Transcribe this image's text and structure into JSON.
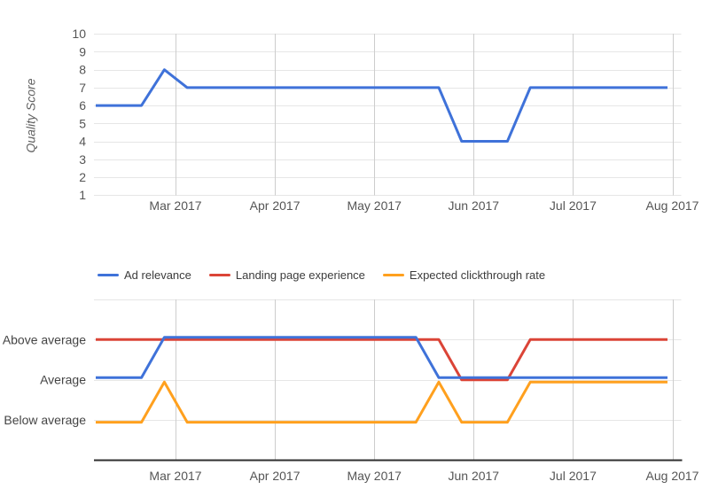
{
  "top_chart": {
    "y_axis_title": "Quality Score",
    "y_ticks": [
      "10",
      "9",
      "8",
      "7",
      "6",
      "5",
      "4",
      "3",
      "2",
      "1"
    ],
    "x_labels": [
      "Mar 2017",
      "Apr 2017",
      "May 2017",
      "Jun 2017",
      "Jul 2017",
      "Aug 2017"
    ]
  },
  "legend": {
    "items": [
      {
        "label": "Ad relevance",
        "color": "#3F72D9"
      },
      {
        "label": "Landing page experience",
        "color": "#DB4437"
      },
      {
        "label": "Expected clickthrough rate",
        "color": "#FFA01E"
      }
    ]
  },
  "bottom_chart": {
    "y_labels": [
      "Above average",
      "Average",
      "Below average"
    ],
    "x_labels": [
      "Mar 2017",
      "Apr 2017",
      "May 2017",
      "Jun 2017",
      "Jul 2017",
      "Aug 2017"
    ]
  },
  "colors": {
    "blue": "#3F72D9",
    "red": "#DB4437",
    "orange": "#FFA01E",
    "h_gridline": "#e6e6e6",
    "v_gridline": "#cdcdcd",
    "axis_line": "#2f2f2f",
    "axis_text": "#555555"
  },
  "chart_data": [
    {
      "type": "line",
      "title": "",
      "ylabel": "Quality Score",
      "ylim": [
        1,
        10
      ],
      "grid": true,
      "legend_position": "none",
      "x_note": "26 weekly points spanning early Feb 2017 to Aug 2017",
      "x_tick_labels": [
        "Mar 2017",
        "Apr 2017",
        "May 2017",
        "Jun 2017",
        "Jul 2017",
        "Aug 2017"
      ],
      "series": [
        {
          "name": "Quality Score",
          "color": "#3F72D9",
          "values": [
            6,
            6,
            6,
            8,
            7,
            7,
            7,
            7,
            7,
            7,
            7,
            7,
            7,
            7,
            7,
            7,
            4,
            4,
            4,
            7,
            7,
            7,
            7,
            7,
            7,
            7
          ]
        }
      ]
    },
    {
      "type": "line",
      "title": "",
      "ylabel": "",
      "grid": true,
      "legend_position": "top",
      "value_scale": {
        "1": "Below average",
        "2": "Average",
        "3": "Above average"
      },
      "ylim": [
        0,
        4
      ],
      "x_note": "26 weekly points spanning early Feb 2017 to Aug 2017",
      "x_tick_labels": [
        "Mar 2017",
        "Apr 2017",
        "May 2017",
        "Jun 2017",
        "Jul 2017",
        "Aug 2017"
      ],
      "series": [
        {
          "name": "Ad relevance",
          "color": "#3F72D9",
          "values": [
            2,
            2,
            2,
            3,
            3,
            3,
            3,
            3,
            3,
            3,
            3,
            3,
            3,
            3,
            3,
            2,
            2,
            2,
            2,
            2,
            2,
            2,
            2,
            2,
            2,
            2
          ]
        },
        {
          "name": "Landing page experience",
          "color": "#DB4437",
          "values": [
            3,
            3,
            3,
            3,
            3,
            3,
            3,
            3,
            3,
            3,
            3,
            3,
            3,
            3,
            3,
            3,
            2,
            2,
            2,
            3,
            3,
            3,
            3,
            3,
            3,
            3
          ]
        },
        {
          "name": "Expected clickthrough rate",
          "color": "#FFA01E",
          "values": [
            1,
            1,
            1,
            2,
            1,
            1,
            1,
            1,
            1,
            1,
            1,
            1,
            1,
            1,
            1,
            2,
            1,
            1,
            1,
            2,
            2,
            2,
            2,
            2,
            2,
            2
          ]
        }
      ]
    }
  ]
}
